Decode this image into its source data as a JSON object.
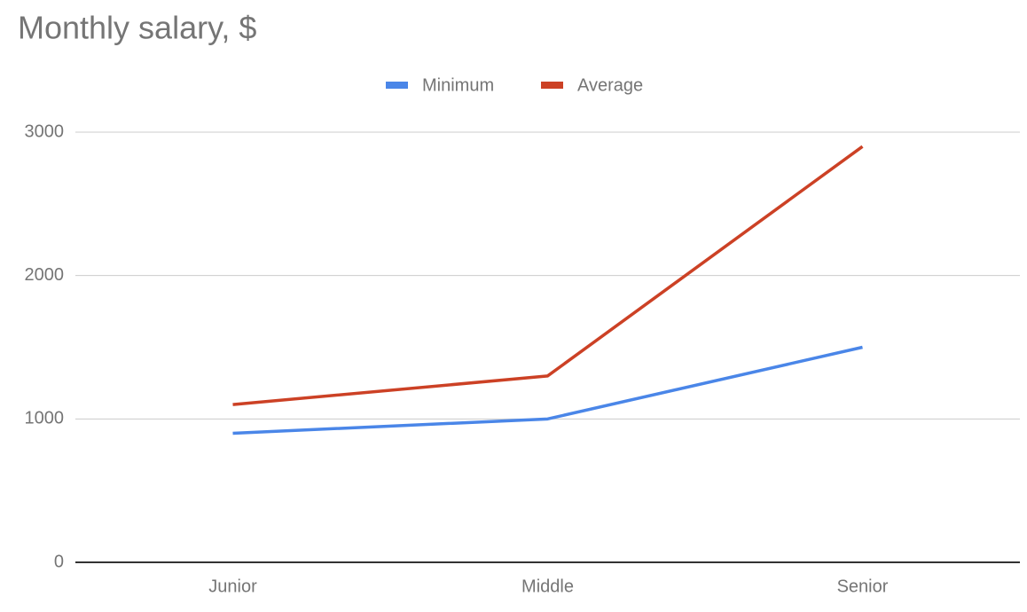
{
  "chart_data": {
    "type": "line",
    "title": "Monthly salary, $",
    "categories": [
      "Junior",
      "Middle",
      "Senior"
    ],
    "series": [
      {
        "name": "Minimum",
        "color": "#4a86e8",
        "values": [
          900,
          1000,
          1500
        ]
      },
      {
        "name": "Average",
        "color": "#cc4125",
        "values": [
          1100,
          1300,
          2900
        ]
      }
    ],
    "ylim": [
      0,
      3000
    ],
    "yticks": [
      0,
      1000,
      2000,
      3000
    ],
    "grid": true,
    "legend": "top"
  }
}
